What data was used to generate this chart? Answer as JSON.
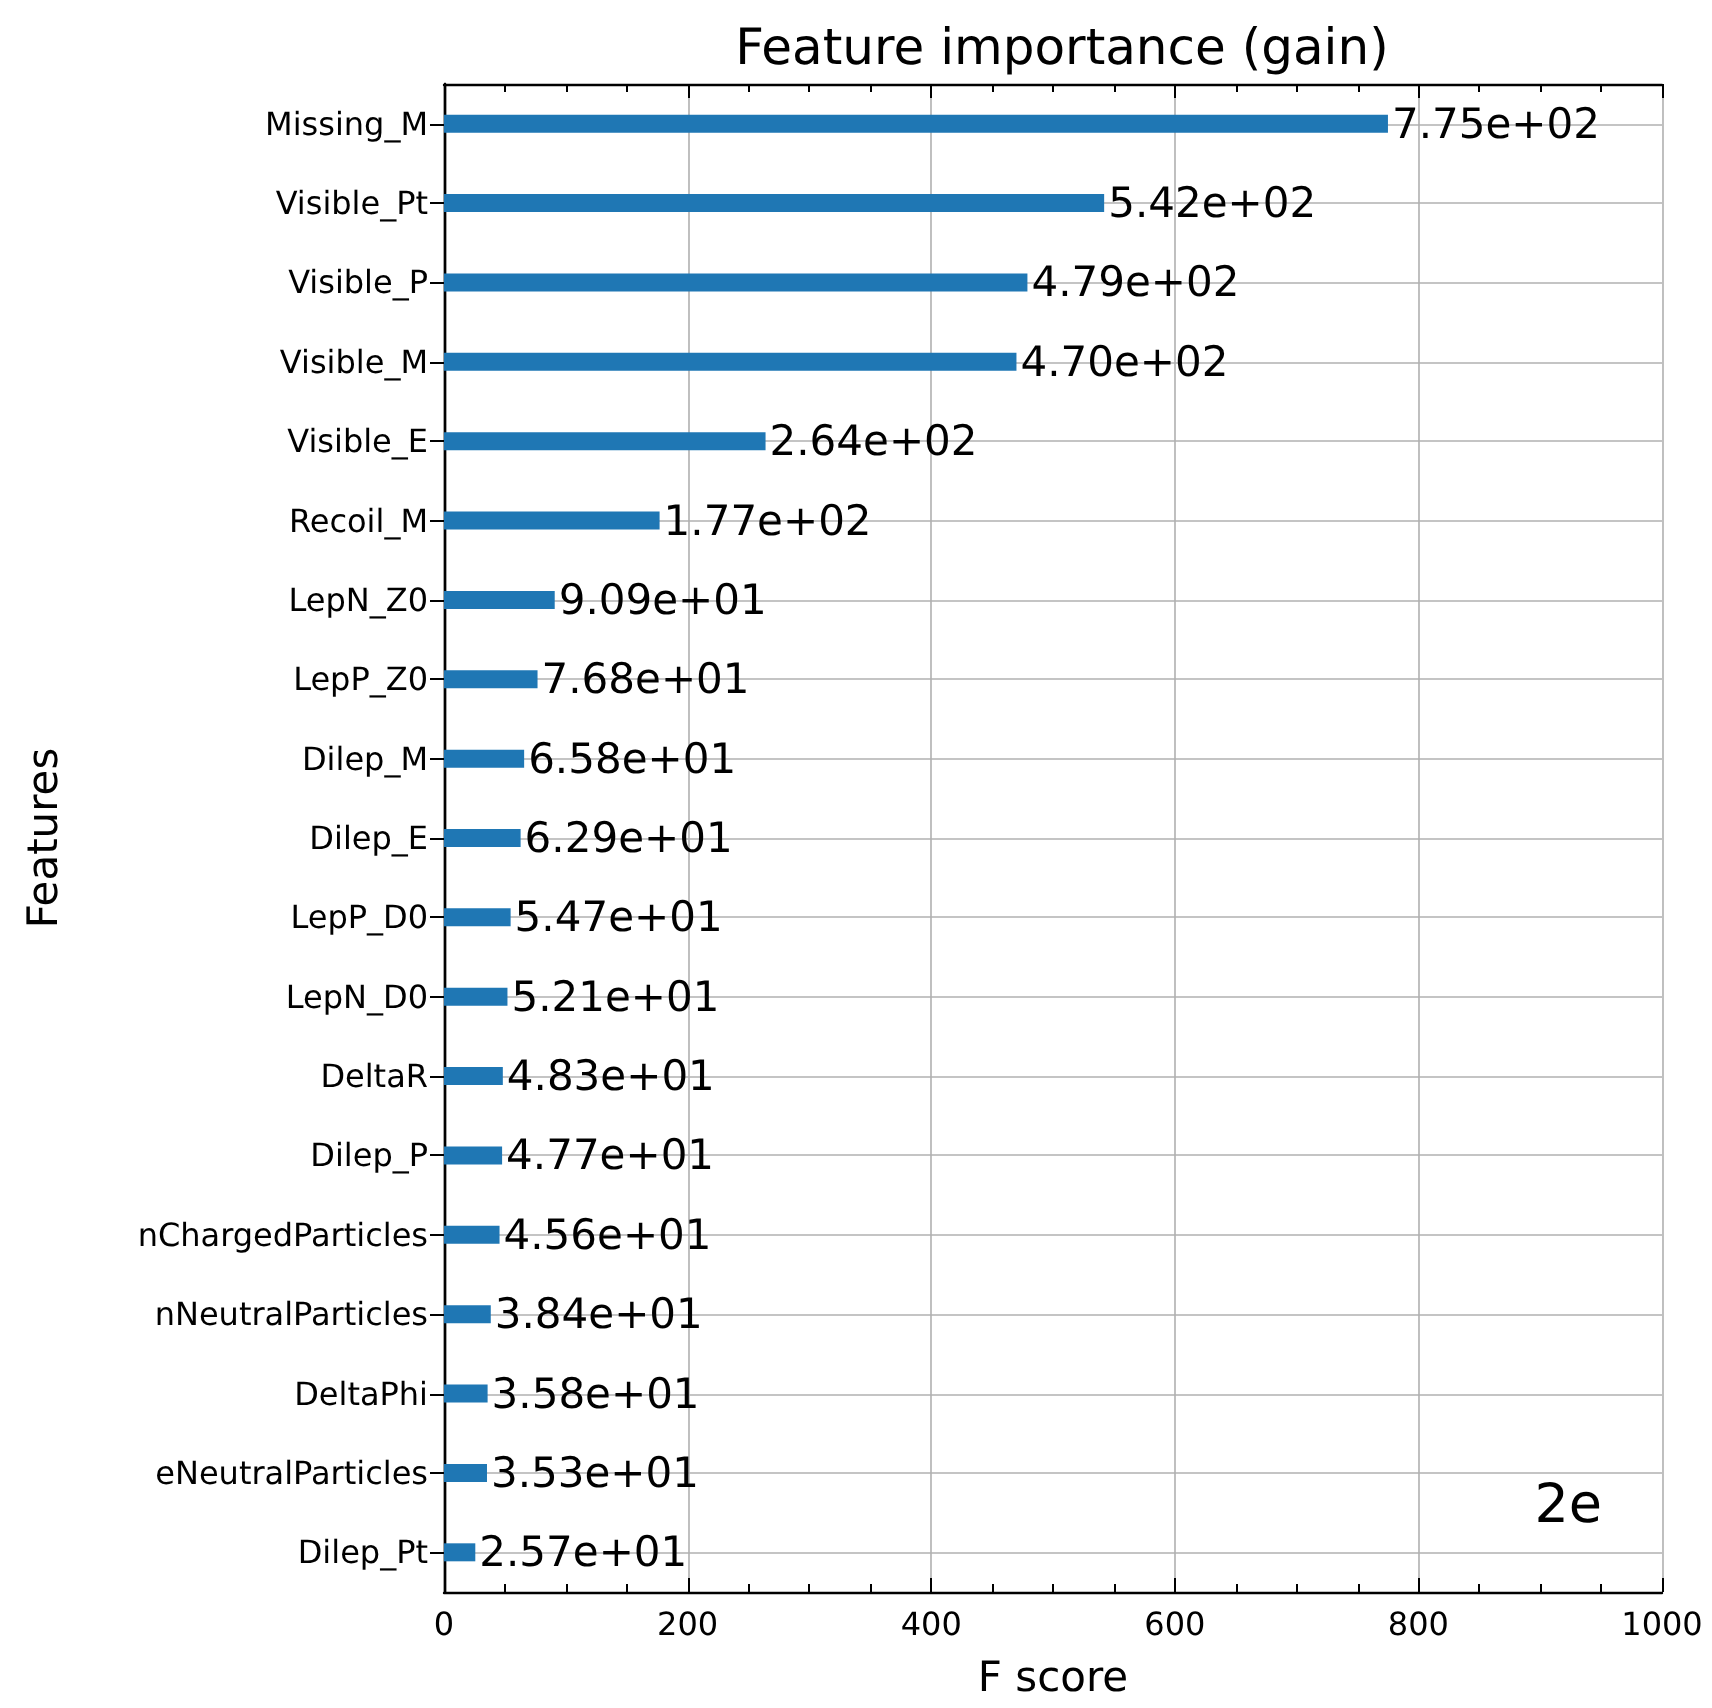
{
  "chart_data": {
    "type": "bar",
    "orientation": "horizontal",
    "title": "Feature importance (gain)",
    "xlabel": "F score",
    "ylabel": "Features",
    "categories": [
      "Missing_M",
      "Visible_Pt",
      "Visible_P",
      "Visible_M",
      "Visible_E",
      "Recoil_M",
      "LepN_Z0",
      "LepP_Z0",
      "Dilep_M",
      "Dilep_E",
      "LepP_D0",
      "LepN_D0",
      "DeltaR",
      "Dilep_P",
      "nChargedParticles",
      "nNeutralParticles",
      "DeltaPhi",
      "eNeutralParticles",
      "Dilep_Pt"
    ],
    "values": [
      775,
      542,
      479,
      470,
      264,
      177,
      90.9,
      76.8,
      65.8,
      62.9,
      54.7,
      52.1,
      48.3,
      47.7,
      45.6,
      38.4,
      35.8,
      35.3,
      25.7
    ],
    "value_labels": [
      "7.75e+02",
      "5.42e+02",
      "4.79e+02",
      "4.70e+02",
      "2.64e+02",
      "1.77e+02",
      "9.09e+01",
      "7.68e+01",
      "6.58e+01",
      "6.29e+01",
      "5.47e+01",
      "5.21e+01",
      "4.83e+01",
      "4.77e+01",
      "4.56e+01",
      "3.84e+01",
      "3.58e+01",
      "3.53e+01",
      "2.57e+01"
    ],
    "color": "#1f77b4",
    "xlim": [
      0,
      1000
    ],
    "xticks": [
      0,
      200,
      400,
      600,
      800,
      1000
    ],
    "grid": true,
    "annotations": [
      "2e"
    ]
  }
}
